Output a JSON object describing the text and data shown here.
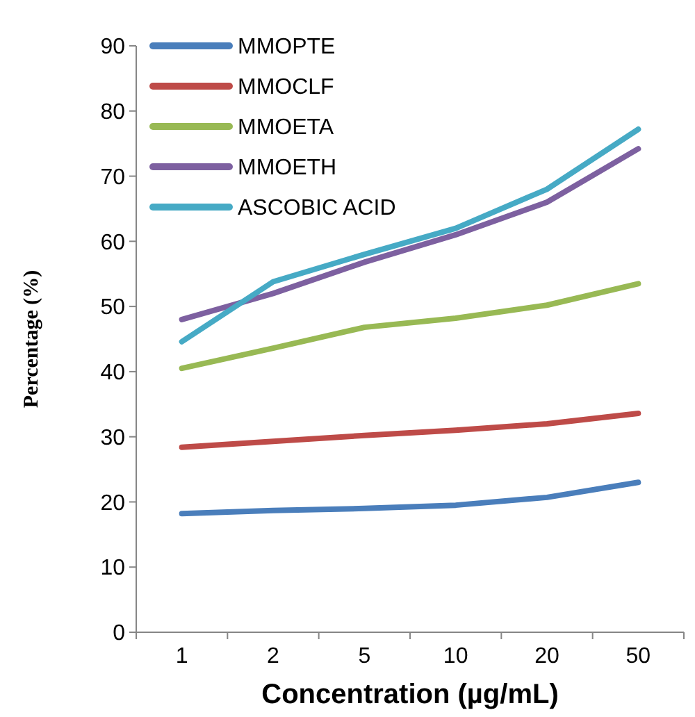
{
  "chart_data": {
    "type": "line",
    "xlabel": "Concentration (µg/mL)",
    "ylabel": "Percentage (%)",
    "categories": [
      "1",
      "2",
      "5",
      "10",
      "20",
      "50"
    ],
    "ylim": [
      0,
      90
    ],
    "yticks": [
      0,
      10,
      20,
      30,
      40,
      50,
      60,
      70,
      80,
      90
    ],
    "grid": false,
    "legend": "top left",
    "marker": "none",
    "line_style": "solid",
    "series": [
      {
        "name": "MMOPTE",
        "color": "#4a7ebb",
        "values": [
          18.2,
          18.7,
          19.0,
          19.5,
          20.7,
          23.0
        ]
      },
      {
        "name": "MMOCLF",
        "color": "#be4b48",
        "values": [
          28.4,
          29.3,
          30.2,
          31.0,
          32.0,
          33.6
        ]
      },
      {
        "name": "MMOETA",
        "color": "#98b954",
        "values": [
          40.5,
          43.6,
          46.8,
          48.2,
          50.2,
          53.5
        ]
      },
      {
        "name": "MMOETH",
        "color": "#7d60a0",
        "values": [
          48.0,
          52.0,
          56.8,
          61.0,
          66.0,
          74.2
        ]
      },
      {
        "name": "ASCOBIC ACID",
        "color": "#46aac5",
        "values": [
          44.6,
          53.8,
          58.0,
          62.0,
          68.0,
          77.2
        ]
      }
    ]
  }
}
